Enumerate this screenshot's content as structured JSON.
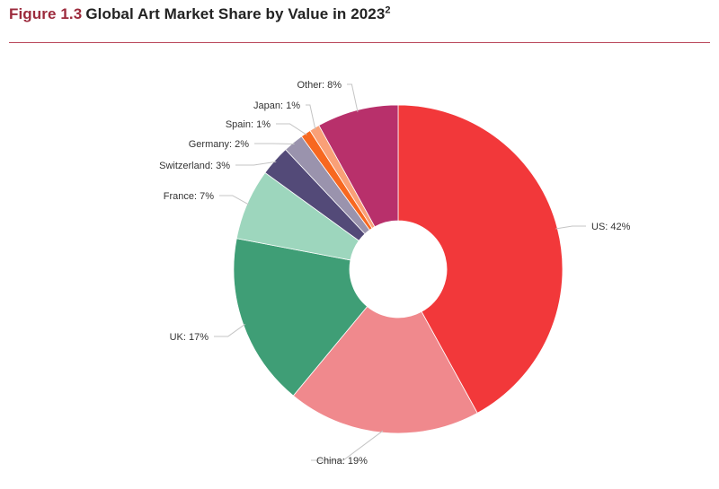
{
  "header": {
    "figure_number": "Figure 1.3",
    "title": "Global Art Market Share by Value in 2023",
    "footnote_marker": "2"
  },
  "chart_data": {
    "type": "pie",
    "donut": true,
    "title": "Figure 1.3 Global Art Market Share by Value in 2023²",
    "slices": [
      {
        "name": "US",
        "value": 42,
        "label": "US: 42%",
        "color": "#f2383a"
      },
      {
        "name": "China",
        "value": 19,
        "label": "China: 19%",
        "color": "#f0898d"
      },
      {
        "name": "UK",
        "value": 17,
        "label": "UK: 17%",
        "color": "#3f9e76"
      },
      {
        "name": "France",
        "value": 7,
        "label": "France: 7%",
        "color": "#9dd6bd"
      },
      {
        "name": "Switzerland",
        "value": 3,
        "label": "Switzerland: 3%",
        "color": "#534a78"
      },
      {
        "name": "Germany",
        "value": 2,
        "label": "Germany: 2%",
        "color": "#9a93ad"
      },
      {
        "name": "Spain",
        "value": 1,
        "label": "Spain: 1%",
        "color": "#f76820"
      },
      {
        "name": "Japan",
        "value": 1,
        "label": "Japan: 1%",
        "color": "#f9a077"
      },
      {
        "name": "Other",
        "value": 8,
        "label": "Other: 8%",
        "color": "#b8306b"
      }
    ],
    "start": "12 o'clock",
    "direction": "clockwise",
    "legend": "none (direct labels with leader lines)"
  }
}
